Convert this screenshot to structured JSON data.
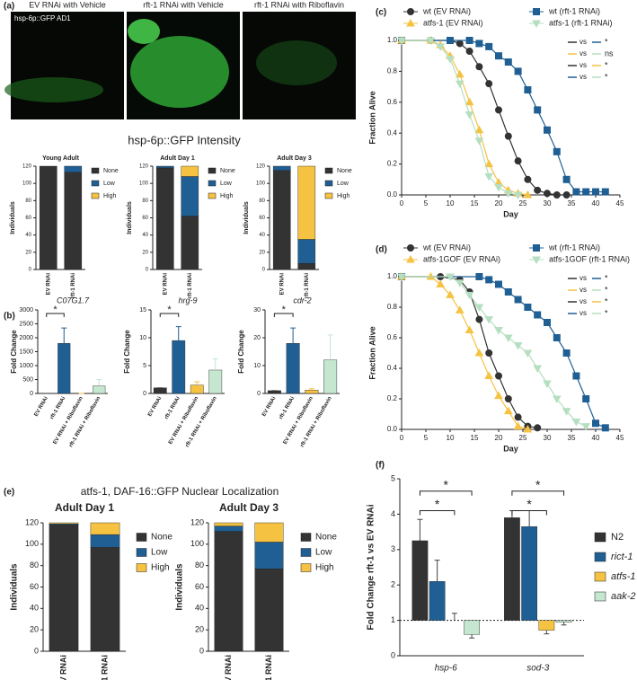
{
  "images": {
    "panel_label": "(a)",
    "captions": [
      "EV RNAi with Vehicle",
      "rft-1 RNAi with Vehicle",
      "rft-1 RNAi with Riboflavin"
    ],
    "inset_label": "hsp-6p::GFP AD1"
  },
  "gfp_title": "hsp-6p::GFP Intensity",
  "daf16_title": "atfs-1, DAF-16::GFP Nuclear Localization",
  "chart_data": [
    {
      "type": "stacked_bar",
      "title": "Young Adult",
      "y_label": "Individuals",
      "categories": [
        "EV RNAi",
        "rft-1 RNAi"
      ],
      "ylim": [
        0,
        120
      ],
      "yticks": [
        0,
        20,
        40,
        60,
        80,
        100,
        120
      ],
      "series": [
        {
          "name": "None",
          "color": "#333333",
          "values": [
            120,
            113
          ]
        },
        {
          "name": "Low",
          "color": "#1f5f94",
          "values": [
            0,
            7
          ]
        },
        {
          "name": "High",
          "color": "#f5c242",
          "values": [
            0,
            0
          ]
        }
      ]
    },
    {
      "type": "stacked_bar",
      "title": "Adult Day 1",
      "y_label": "Individuals",
      "categories": [
        "EV RNAi",
        "rft-1 RNAi"
      ],
      "ylim": [
        0,
        120
      ],
      "yticks": [
        0,
        20,
        40,
        60,
        80,
        100,
        120
      ],
      "series": [
        {
          "name": "None",
          "color": "#333333",
          "values": [
            118,
            62
          ]
        },
        {
          "name": "Low",
          "color": "#1f5f94",
          "values": [
            2,
            46
          ]
        },
        {
          "name": "High",
          "color": "#f5c242",
          "values": [
            0,
            12
          ]
        }
      ]
    },
    {
      "type": "stacked_bar",
      "title": "Adult Day 3",
      "y_label": "Individuals",
      "categories": [
        "EV RNAi",
        "rft-1 RNAi"
      ],
      "ylim": [
        0,
        120
      ],
      "yticks": [
        0,
        20,
        40,
        60,
        80,
        100,
        120
      ],
      "series": [
        {
          "name": "None",
          "color": "#333333",
          "values": [
            115,
            7
          ]
        },
        {
          "name": "Low",
          "color": "#1f5f94",
          "values": [
            5,
            28
          ]
        },
        {
          "name": "High",
          "color": "#f5c242",
          "values": [
            0,
            85
          ]
        }
      ]
    },
    {
      "type": "bar",
      "panel_label": "(b)",
      "title": "C07G1.7",
      "y_label": "Fold Change",
      "annotation": "*",
      "categories": [
        "EV RNAi",
        "rft-1 RNAi",
        "EV RNAi + Riboflavin",
        "rft-1 RNAi + Riboflavin"
      ],
      "values": [
        1,
        1800,
        1,
        270
      ],
      "errors": [
        0,
        550,
        0,
        230
      ],
      "colors": [
        "#333333",
        "#1f5f94",
        "#f5c242",
        "#c5e6cf"
      ],
      "ylim": [
        0,
        3000
      ],
      "yticks": [
        0,
        500,
        1000,
        1500,
        2000,
        2500,
        3000
      ]
    },
    {
      "type": "bar",
      "title": "hrg-9",
      "y_label": "Fold Change",
      "annotation": "*",
      "categories": [
        "EV RNAi",
        "rft-1 RNAi",
        "EV RNAi + Riboflavin",
        "rft-1 RNAi + Riboflavin"
      ],
      "values": [
        1,
        9.5,
        1.5,
        4.2
      ],
      "errors": [
        0,
        2.5,
        0.6,
        2
      ],
      "colors": [
        "#333333",
        "#1f5f94",
        "#f5c242",
        "#c5e6cf"
      ],
      "ylim": [
        0,
        15
      ],
      "yticks": [
        0,
        5,
        10,
        15
      ]
    },
    {
      "type": "bar",
      "title": "cdr-2",
      "y_label": "Fold Change",
      "annotation": "*",
      "categories": [
        "EV RNAi",
        "rft-1 RNAi",
        "EV RNAi + Riboflavin",
        "rft-1 RNAi + Riboflavin"
      ],
      "values": [
        1,
        18,
        1.2,
        12
      ],
      "errors": [
        0,
        5.5,
        0.5,
        9
      ],
      "colors": [
        "#333333",
        "#1f5f94",
        "#f5c242",
        "#c5e6cf"
      ],
      "ylim": [
        0,
        30
      ],
      "yticks": [
        0,
        10,
        20,
        30
      ]
    },
    {
      "type": "line",
      "panel_label": "(c)",
      "x_label": "Day",
      "y_label": "Fraction Alive",
      "xlim": [
        0,
        45
      ],
      "xticks": [
        0,
        5,
        10,
        15,
        20,
        25,
        30,
        35,
        40,
        45
      ],
      "ylim": [
        0,
        1
      ],
      "yticks": [
        {
          "value": 0,
          "label": "0.0"
        },
        0.2,
        0.4,
        0.6,
        0.8,
        {
          "value": 1,
          "label": "1.0"
        }
      ],
      "series": [
        {
          "name": "wt (EV RNAi)",
          "color": "#333333",
          "marker": "circle",
          "x": [
            0,
            6,
            10,
            12,
            14,
            16,
            18,
            20,
            22,
            24,
            26,
            28,
            30,
            32,
            34
          ],
          "values": [
            1,
            1,
            1,
            0.98,
            0.93,
            0.83,
            0.72,
            0.55,
            0.38,
            0.22,
            0.1,
            0.03,
            0.01,
            0,
            0
          ]
        },
        {
          "name": "wt (rft-1 RNAi)",
          "color": "#1f5f94",
          "marker": "square",
          "x": [
            0,
            10,
            14,
            16,
            18,
            20,
            22,
            24,
            26,
            28,
            30,
            32,
            34,
            36,
            38,
            40,
            42
          ],
          "values": [
            1,
            1,
            1,
            0.98,
            0.96,
            0.9,
            0.86,
            0.8,
            0.68,
            0.55,
            0.42,
            0.28,
            0.1,
            0.02,
            0.02,
            0.02,
            0.02
          ]
        },
        {
          "name": "atfs-1 (EV RNAi)",
          "color": "#f5c242",
          "marker": "triangle",
          "x": [
            0,
            6,
            8,
            10,
            12,
            14,
            16,
            18,
            20,
            22,
            24,
            26
          ],
          "values": [
            1,
            1,
            0.97,
            0.9,
            0.78,
            0.6,
            0.42,
            0.2,
            0.08,
            0.03,
            0.01,
            0
          ]
        },
        {
          "name": "atfs-1 (rft-1 RNAi)",
          "color": "#b5dfc0",
          "marker": "triangle-down",
          "x": [
            0,
            6,
            8,
            10,
            12,
            14,
            16,
            18,
            20,
            22,
            24
          ],
          "values": [
            1,
            1,
            0.96,
            0.88,
            0.72,
            0.52,
            0.35,
            0.12,
            0.05,
            0.01,
            0
          ]
        }
      ],
      "comparisons": [
        {
          "colors": [
            "#333333",
            "#1f5f94"
          ],
          "label": "vs",
          "result": "*"
        },
        {
          "colors": [
            "#f5c242",
            "#b5dfc0"
          ],
          "label": "vs",
          "result": "ns"
        },
        {
          "colors": [
            "#333333",
            "#f5c242"
          ],
          "label": "vs",
          "result": "*"
        },
        {
          "colors": [
            "#1f5f94",
            "#b5dfc0"
          ],
          "label": "vs",
          "result": "*"
        }
      ]
    },
    {
      "type": "line",
      "panel_label": "(d)",
      "x_label": "Day",
      "y_label": "Fraction Alive",
      "xlim": [
        0,
        45
      ],
      "xticks": [
        0,
        5,
        10,
        15,
        20,
        25,
        30,
        35,
        40,
        45
      ],
      "ylim": [
        0,
        1
      ],
      "yticks": [
        {
          "value": 0,
          "label": "0.0"
        },
        0.2,
        0.4,
        0.6,
        0.8,
        {
          "value": 1,
          "label": "1.0"
        }
      ],
      "series": [
        {
          "name": "wt (EV RNAi)",
          "color": "#333333",
          "marker": "circle",
          "x": [
            0,
            8,
            12,
            14,
            16,
            18,
            20,
            22,
            24,
            26,
            28
          ],
          "values": [
            1,
            1,
            0.98,
            0.9,
            0.72,
            0.5,
            0.35,
            0.2,
            0.08,
            0.02,
            0.01
          ]
        },
        {
          "name": "wt (rft-1 RNAi)",
          "color": "#1f5f94",
          "marker": "square",
          "x": [
            0,
            16,
            18,
            20,
            22,
            24,
            26,
            28,
            30,
            32,
            34,
            36,
            38,
            40,
            42
          ],
          "values": [
            1,
            1,
            0.98,
            0.95,
            0.9,
            0.85,
            0.8,
            0.75,
            0.7,
            0.6,
            0.5,
            0.35,
            0.2,
            0.04,
            0.01
          ]
        },
        {
          "name": "atfs-1GOF (EV RNAi)",
          "color": "#f5c242",
          "marker": "triangle",
          "x": [
            0,
            6,
            8,
            10,
            12,
            14,
            16,
            18,
            20,
            22,
            24,
            26
          ],
          "values": [
            1,
            1,
            0.95,
            0.88,
            0.78,
            0.65,
            0.5,
            0.35,
            0.22,
            0.12,
            0.02,
            0
          ]
        },
        {
          "name": "atfs-1GOF (rft-1 RNAi)",
          "color": "#b5dfc0",
          "marker": "triangle-down",
          "x": [
            0,
            10,
            12,
            14,
            16,
            18,
            20,
            22,
            24,
            26,
            28,
            30,
            32,
            34,
            36,
            38
          ],
          "values": [
            1,
            1,
            0.96,
            0.88,
            0.8,
            0.72,
            0.65,
            0.6,
            0.55,
            0.5,
            0.4,
            0.3,
            0.2,
            0.12,
            0.05,
            0.02
          ]
        }
      ],
      "comparisons": [
        {
          "colors": [
            "#333333",
            "#1f5f94"
          ],
          "label": "vs",
          "result": "*"
        },
        {
          "colors": [
            "#f5c242",
            "#b5dfc0"
          ],
          "label": "vs",
          "result": "*"
        },
        {
          "colors": [
            "#333333",
            "#f5c242"
          ],
          "label": "vs",
          "result": "*"
        },
        {
          "colors": [
            "#1f5f94",
            "#b5dfc0"
          ],
          "label": "vs",
          "result": "*"
        }
      ]
    },
    {
      "type": "stacked_bar",
      "panel_label": "(e)",
      "title": "Adult Day 1",
      "y_label": "Individuals",
      "categories": [
        "EV RNAi",
        "rft-1 RNAi"
      ],
      "ylim": [
        0,
        120
      ],
      "yticks": [
        0,
        20,
        40,
        60,
        80,
        100,
        120
      ],
      "series": [
        {
          "name": "None",
          "color": "#333333",
          "values": [
            118,
            97
          ]
        },
        {
          "name": "Low",
          "color": "#1f5f94",
          "values": [
            1,
            12
          ]
        },
        {
          "name": "High",
          "color": "#f5c242",
          "values": [
            1,
            11
          ]
        }
      ]
    },
    {
      "type": "stacked_bar",
      "title": "Adult  Day 3",
      "y_label": "Individuals",
      "categories": [
        "EV RNAi",
        "rft-1 RNAi"
      ],
      "ylim": [
        0,
        120
      ],
      "yticks": [
        0,
        20,
        40,
        60,
        80,
        100,
        120
      ],
      "series": [
        {
          "name": "None",
          "color": "#333333",
          "values": [
            112,
            77
          ]
        },
        {
          "name": "Low",
          "color": "#1f5f94",
          "values": [
            5,
            25
          ]
        },
        {
          "name": "High",
          "color": "#f5c242",
          "values": [
            3,
            18
          ]
        }
      ]
    },
    {
      "type": "grouped_bar",
      "panel_label": "(f)",
      "y_label": "Fold  Change rft-1 vs EV RNAi",
      "categories": [
        "hsp-6",
        "sod-3"
      ],
      "baseline": 1,
      "ylim": [
        0,
        5
      ],
      "yticks": [
        0,
        1,
        2,
        3,
        4,
        5
      ],
      "annotations": [
        "*",
        "*",
        "*",
        "*"
      ],
      "series": [
        {
          "name": "N2",
          "color": "#333333",
          "values": [
            3.25,
            3.9
          ],
          "errors": [
            0.6,
            0.2
          ]
        },
        {
          "name": "rict-1",
          "color": "#1f5f94",
          "values": [
            2.1,
            3.65
          ],
          "errors": [
            0.6,
            0.45
          ]
        },
        {
          "name": "atfs-1",
          "color": "#f5c242",
          "values": [
            1,
            0.72
          ],
          "errors": [
            0.2,
            0.1
          ]
        },
        {
          "name": "aak-2",
          "color": "#c5e6cf",
          "values": [
            0.6,
            0.95
          ],
          "errors": [
            0.1,
            0.08
          ]
        }
      ]
    }
  ]
}
